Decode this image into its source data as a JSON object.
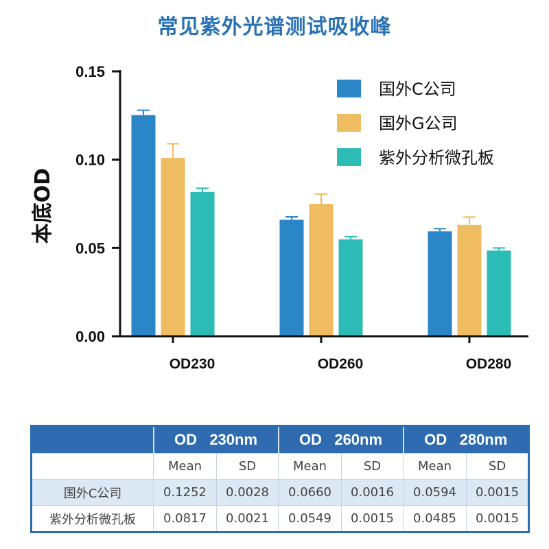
{
  "chart_data": {
    "type": "bar",
    "title": "常见紫外光谱测试吸收峰",
    "ylabel": "本底OD",
    "xlabel": "",
    "ylim": [
      0,
      0.15
    ],
    "yticks": [
      "0.00",
      "0.05",
      "0.10",
      "0.15"
    ],
    "categories": [
      "OD230",
      "OD260",
      "OD280"
    ],
    "legend_position": "top-right",
    "grid": false,
    "series": [
      {
        "name": "国外C公司",
        "color": "#2a86c7",
        "values": [
          0.1252,
          0.066,
          0.0594
        ],
        "errors": [
          0.0028,
          0.0016,
          0.0015
        ]
      },
      {
        "name": "国外G公司",
        "color": "#f0bc62",
        "values": [
          0.101,
          0.075,
          0.063
        ],
        "errors": [
          0.008,
          0.0055,
          0.0045
        ]
      },
      {
        "name": "紫外分析微孔板",
        "color": "#2cbbb5",
        "values": [
          0.0817,
          0.0549,
          0.0485
        ],
        "errors": [
          0.0021,
          0.0015,
          0.0015
        ]
      }
    ]
  },
  "table": {
    "header": [
      "",
      "OD   230nm",
      "OD   260nm",
      "OD   280nm"
    ],
    "subheader": [
      "",
      "Mean",
      "SD",
      "Mean",
      "SD",
      "Mean",
      "SD"
    ],
    "rows": [
      [
        "国外C公司",
        "0.1252",
        "0.0028",
        "0.0660",
        "0.0016",
        "0.0594",
        "0.0015"
      ],
      [
        "紫外分析微孔板",
        "0.0817",
        "0.0021",
        "0.0549",
        "0.0015",
        "0.0485",
        "0.0015"
      ]
    ]
  }
}
